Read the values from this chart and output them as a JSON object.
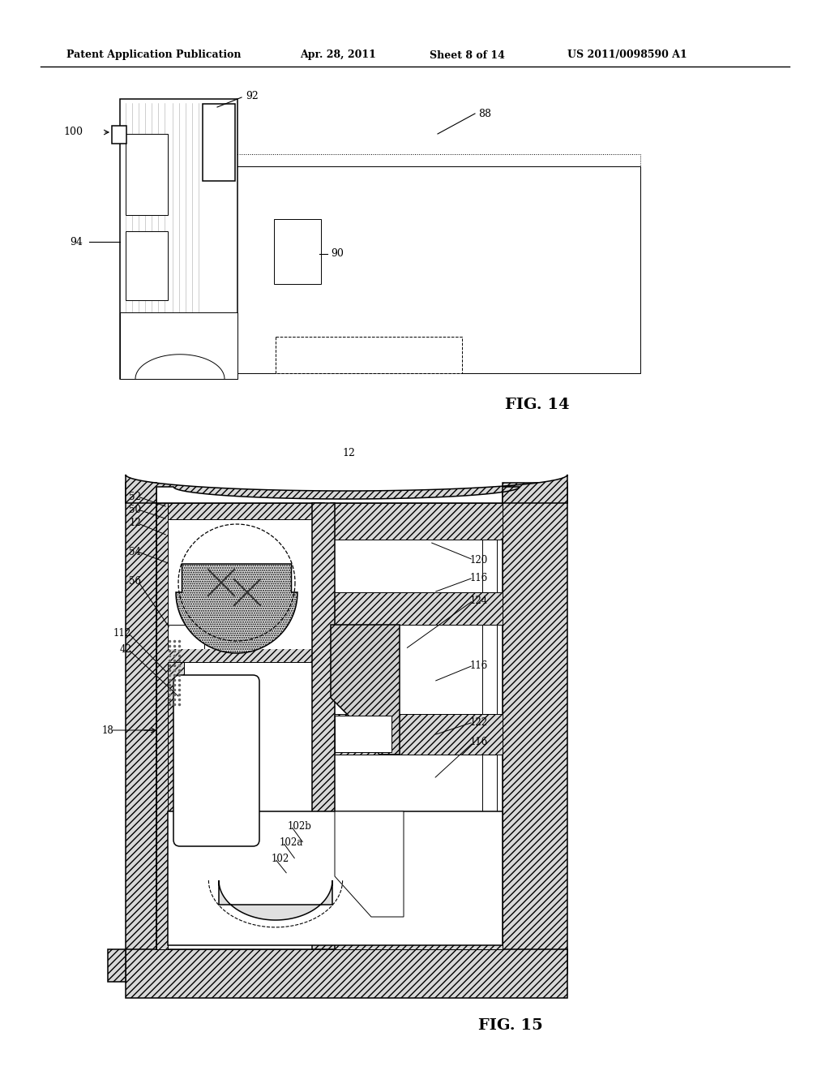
{
  "bg_color": "#ffffff",
  "lc": "#000000",
  "header_text": "Patent Application Publication",
  "header_date": "Apr. 28, 2011",
  "header_sheet": "Sheet 8 of 14",
  "header_patent": "US 2011/0098590 A1",
  "fig14_label": "FIG. 14",
  "fig15_label": "FIG. 15",
  "hatch_gray": "#b0b0b0",
  "dot_gray": "#888888"
}
